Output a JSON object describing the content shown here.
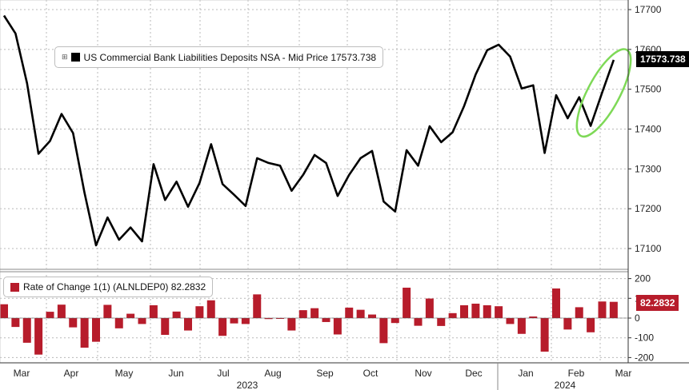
{
  "colors": {
    "main_line": "#000000",
    "bar": "#b71c2b",
    "highlight": "#7ed957",
    "tag_main": "#000000",
    "tag_sub": "#b71c2b"
  },
  "legend_main": {
    "text": "US Commercial Bank Liabilities Deposits NSA - Mid Price 17573.738",
    "icon": "expand-icon"
  },
  "legend_sub": {
    "text": "Rate of Change 1(1) (ALNLDEP0) 82.2832"
  },
  "last_value_main": "17573.738",
  "last_value_sub": "82.2832",
  "chart_data": [
    {
      "type": "line",
      "series": [
        {
          "name": "US Commercial Bank Liabilities Deposits NSA - Mid Price",
          "values": [
            17685,
            17640,
            17515,
            17338,
            17370,
            17438,
            17390,
            17240,
            17108,
            17178,
            17122,
            17153,
            17118,
            17312,
            17222,
            17268,
            17205,
            17265,
            17362,
            17262,
            17235,
            17207,
            17327,
            17315,
            17308,
            17245,
            17285,
            17335,
            17315,
            17232,
            17285,
            17327,
            17345,
            17218,
            17193,
            17347,
            17308,
            17407,
            17367,
            17392,
            17458,
            17537,
            17598,
            17612,
            17582,
            17502,
            17510,
            17340,
            17485,
            17427,
            17480,
            17408,
            17492,
            17573.738
          ]
        }
      ],
      "ylim": [
        17050,
        17720
      ],
      "yticks": [
        17100,
        17200,
        17300,
        17400,
        17500,
        17600,
        17700
      ],
      "grid": true,
      "legend": "top-left"
    },
    {
      "type": "bar",
      "series": [
        {
          "name": "Rate of Change 1(1) (ALNLDEP0)",
          "values": [
            70,
            -45,
            -125,
            -185,
            32,
            68,
            -47,
            -150,
            -120,
            67,
            -52,
            22,
            -30,
            65,
            -85,
            33,
            -63,
            60,
            90,
            -90,
            -27,
            -30,
            120,
            -5,
            -3,
            -63,
            40,
            50,
            -20,
            -83,
            53,
            42,
            18,
            -127,
            -25,
            154,
            -39,
            99,
            -40,
            25,
            65,
            73,
            65,
            60,
            -30,
            -80,
            8,
            -170,
            150,
            -58,
            55,
            -72,
            84,
            82.2832
          ]
        }
      ],
      "ylim": [
        -230,
        230
      ],
      "yticks": [
        200,
        100,
        0,
        -100,
        -200
      ],
      "ytick_labels": [
        "200",
        "100",
        "0",
        "-100",
        "-200"
      ],
      "grid": true,
      "legend": "top-left"
    }
  ],
  "x_axis": {
    "months": [
      "Mar",
      "Apr",
      "May",
      "Jun",
      "Jul",
      "Aug",
      "Sep",
      "Oct",
      "Nov",
      "Dec",
      "Jan",
      "Feb",
      "Mar"
    ],
    "years": [
      "2023",
      "2024"
    ]
  }
}
